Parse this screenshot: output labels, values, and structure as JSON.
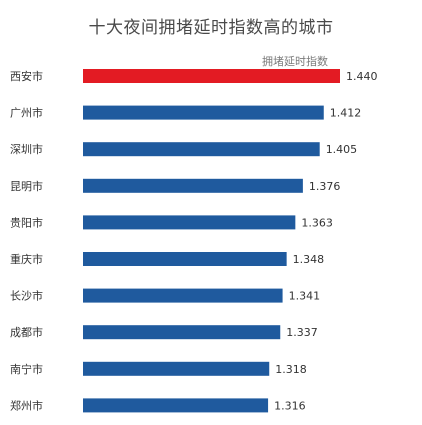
{
  "chart_data": {
    "type": "bar",
    "orientation": "horizontal",
    "title": "十大夜间拥堵延时指数高的城市",
    "series": [
      {
        "name": "拥堵延时指数",
        "values": [
          1.44,
          1.412,
          1.405,
          1.376,
          1.363,
          1.348,
          1.341,
          1.337,
          1.318,
          1.316
        ]
      }
    ],
    "categories": [
      "西安市",
      "广州市",
      "深圳市",
      "昆明市",
      "贵阳市",
      "重庆市",
      "长沙市",
      "成都市",
      "南宁市",
      "郑州市"
    ],
    "value_labels": [
      "1.440",
      "1.412",
      "1.405",
      "1.376",
      "1.363",
      "1.348",
      "1.341",
      "1.337",
      "1.318",
      "1.316"
    ],
    "highlight_index": 0,
    "colors": {
      "highlight": "#e31b23",
      "bar": "#1f5a9e",
      "text": "#333333"
    },
    "grid": false,
    "legend": "top-right"
  }
}
